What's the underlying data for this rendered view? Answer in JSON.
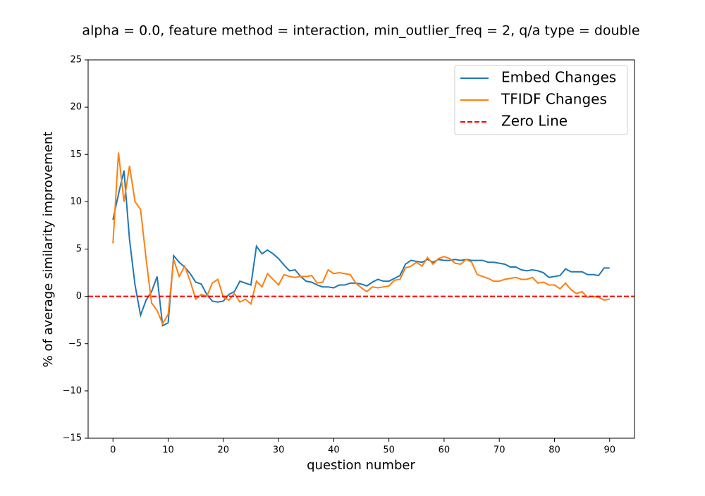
{
  "chart_data": {
    "type": "line",
    "title": "alpha = 0.0,  feature method = interaction, min_outlier_freq = 2,  q/a type = double",
    "x_label": "question number",
    "y_label": "% of average similarity improvement",
    "x": [
      0,
      1,
      2,
      3,
      4,
      5,
      6,
      7,
      8,
      9,
      10,
      11,
      12,
      13,
      14,
      15,
      16,
      17,
      18,
      19,
      20,
      21,
      22,
      23,
      24,
      25,
      26,
      27,
      28,
      29,
      30,
      31,
      32,
      33,
      34,
      35,
      36,
      37,
      38,
      39,
      40,
      41,
      42,
      43,
      44,
      45,
      46,
      47,
      48,
      49,
      50,
      51,
      52,
      53,
      54,
      55,
      56,
      57,
      58,
      59,
      60,
      61,
      62,
      63,
      64,
      65,
      66,
      67,
      68,
      69,
      70,
      71,
      72,
      73,
      74,
      75,
      76,
      77,
      78,
      79,
      80,
      81,
      82,
      83,
      84,
      85,
      86,
      87,
      88,
      89,
      90
    ],
    "series": [
      {
        "name": "Embed Changes",
        "color": "#1f77b4",
        "values": [
          8.1,
          10.8,
          13.3,
          6.0,
          1.2,
          -2.0,
          -0.4,
          0.5,
          2.1,
          -3.1,
          -2.8,
          4.3,
          3.6,
          3.1,
          2.4,
          1.5,
          1.3,
          0.2,
          -0.5,
          -0.6,
          -0.5,
          0.2,
          0.5,
          1.6,
          1.4,
          1.2,
          5.3,
          4.5,
          4.9,
          4.5,
          4.0,
          3.3,
          2.7,
          2.8,
          2.1,
          1.6,
          1.5,
          1.2,
          1.0,
          1.0,
          0.9,
          1.2,
          1.2,
          1.4,
          1.4,
          1.3,
          1.1,
          1.5,
          1.8,
          1.6,
          1.6,
          1.9,
          2.2,
          3.4,
          3.8,
          3.7,
          3.6,
          3.9,
          3.6,
          3.9,
          3.8,
          3.8,
          3.9,
          3.8,
          3.9,
          3.8,
          3.8,
          3.8,
          3.6,
          3.6,
          3.5,
          3.4,
          3.1,
          3.1,
          2.8,
          2.7,
          2.8,
          2.7,
          2.5,
          2.0,
          2.1,
          2.2,
          2.9,
          2.6,
          2.6,
          2.6,
          2.3,
          2.3,
          2.2,
          3.0,
          3.0
        ]
      },
      {
        "name": "TFIDF Changes",
        "color": "#ff7f0e",
        "values": [
          5.6,
          15.2,
          10.0,
          13.8,
          10.0,
          9.2,
          4.0,
          -0.7,
          -1.5,
          -2.9,
          -1.9,
          3.9,
          2.1,
          3.2,
          1.6,
          -0.3,
          0.2,
          0.0,
          1.4,
          1.8,
          -0.1,
          -0.4,
          0.3,
          -0.6,
          -0.3,
          -0.8,
          1.6,
          1.0,
          2.4,
          1.8,
          1.2,
          2.3,
          2.1,
          2.0,
          2.1,
          2.1,
          2.2,
          1.4,
          1.5,
          2.8,
          2.4,
          2.5,
          2.4,
          2.3,
          1.4,
          0.9,
          0.5,
          1.0,
          0.9,
          1.0,
          1.1,
          1.7,
          1.8,
          3.0,
          3.2,
          3.6,
          3.2,
          4.1,
          3.4,
          4.0,
          4.2,
          4.0,
          3.5,
          3.4,
          3.9,
          3.6,
          2.3,
          2.1,
          1.9,
          1.6,
          1.6,
          1.8,
          1.9,
          2.0,
          1.8,
          1.8,
          2.0,
          1.4,
          1.5,
          1.2,
          1.2,
          0.8,
          1.4,
          0.7,
          0.3,
          0.5,
          -0.1,
          0.0,
          -0.1,
          -0.4,
          -0.3
        ]
      }
    ],
    "reference_line": {
      "name": "Zero Line",
      "value": 0,
      "color": "#ff0000",
      "dashed": true
    },
    "xlim": [
      -4.5,
      94.5
    ],
    "ylim": [
      -15,
      25
    ],
    "xticks": [
      0,
      10,
      20,
      30,
      40,
      50,
      60,
      70,
      80,
      90
    ],
    "yticks": [
      {
        "value": -15,
        "label": "−15"
      },
      {
        "value": -10,
        "label": "−10"
      },
      {
        "value": -5,
        "label": "−5"
      },
      0,
      5,
      10,
      15,
      20,
      25
    ],
    "legend": "upper right",
    "grid": false
  }
}
